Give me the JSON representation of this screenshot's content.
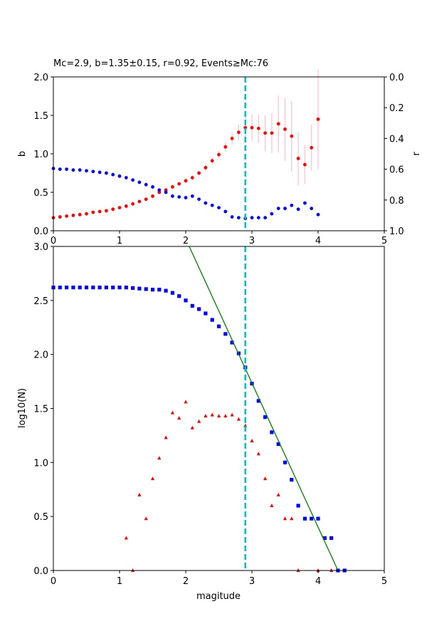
{
  "chart_data": [
    {
      "type": "scatter",
      "title": "Mc=2.9, b=1.35±0.15, r=0.92, Events≥Mc:76",
      "xlabel": "",
      "ylabel": "b",
      "ylabel_right": "r",
      "xlim": [
        0,
        5
      ],
      "ylim": [
        0,
        2
      ],
      "ylim_right": [
        1,
        0
      ],
      "xticks": [
        "0",
        "1",
        "2",
        "3",
        "4",
        "5"
      ],
      "yticks": [
        "0.0",
        "0.5",
        "1.0",
        "1.5",
        "2.0"
      ],
      "yticks_right": [
        "0.0",
        "0.2",
        "0.4",
        "0.6",
        "0.8",
        "1.0"
      ],
      "mc_line": 2.9,
      "colors": {
        "b": "#ff0000",
        "r": "#0000ff",
        "error": "#ffc0cb",
        "mc": "#00bfbf"
      },
      "series": [
        {
          "key": "b",
          "axis": "left",
          "x": [
            0.0,
            0.1,
            0.2,
            0.3,
            0.4,
            0.5,
            0.6,
            0.7,
            0.8,
            0.9,
            1.0,
            1.1,
            1.2,
            1.3,
            1.4,
            1.5,
            1.6,
            1.7,
            1.8,
            1.9,
            2.0,
            2.1,
            2.2,
            2.3,
            2.4,
            2.5,
            2.6,
            2.7,
            2.8,
            2.9,
            3.0,
            3.1,
            3.2,
            3.3,
            3.4,
            3.5,
            3.6,
            3.7,
            3.8,
            3.9,
            4.0
          ],
          "y": [
            0.17,
            0.18,
            0.19,
            0.2,
            0.21,
            0.22,
            0.24,
            0.25,
            0.26,
            0.28,
            0.3,
            0.32,
            0.35,
            0.38,
            0.41,
            0.45,
            0.5,
            0.53,
            0.57,
            0.61,
            0.65,
            0.69,
            0.75,
            0.82,
            0.91,
            0.99,
            1.09,
            1.2,
            1.28,
            1.34,
            1.34,
            1.33,
            1.27,
            1.27,
            1.39,
            1.32,
            1.23,
            0.94,
            0.86,
            1.08,
            1.45
          ],
          "err": [
            0.01,
            0.01,
            0.01,
            0.01,
            0.01,
            0.01,
            0.01,
            0.01,
            0.01,
            0.01,
            0.01,
            0.01,
            0.01,
            0.01,
            0.02,
            0.02,
            0.02,
            0.02,
            0.02,
            0.02,
            0.03,
            0.03,
            0.03,
            0.04,
            0.05,
            0.05,
            0.06,
            0.08,
            0.1,
            0.15,
            0.17,
            0.18,
            0.23,
            0.26,
            0.37,
            0.41,
            0.46,
            0.35,
            0.25,
            0.3,
            0.65
          ]
        },
        {
          "key": "r",
          "axis": "right",
          "x": [
            0.0,
            0.1,
            0.2,
            0.3,
            0.4,
            0.5,
            0.6,
            0.7,
            0.8,
            0.9,
            1.0,
            1.1,
            1.2,
            1.3,
            1.4,
            1.5,
            1.6,
            1.7,
            1.8,
            1.9,
            2.0,
            2.1,
            2.2,
            2.3,
            2.4,
            2.5,
            2.6,
            2.7,
            2.8,
            2.9,
            3.0,
            3.1,
            3.2,
            3.3,
            3.4,
            3.5,
            3.6,
            3.7,
            3.8,
            3.9,
            4.0
          ],
          "y": [
            0.595,
            0.6,
            0.6,
            0.605,
            0.605,
            0.61,
            0.615,
            0.62,
            0.625,
            0.635,
            0.645,
            0.655,
            0.67,
            0.685,
            0.7,
            0.715,
            0.735,
            0.75,
            0.775,
            0.78,
            0.785,
            0.775,
            0.795,
            0.82,
            0.835,
            0.85,
            0.875,
            0.91,
            0.915,
            0.92,
            0.915,
            0.915,
            0.915,
            0.89,
            0.855,
            0.855,
            0.835,
            0.86,
            0.82,
            0.855,
            0.895
          ]
        }
      ]
    },
    {
      "type": "scatter",
      "title": "",
      "xlabel": "magitude",
      "ylabel": "log10(N)",
      "xlim": [
        0,
        5
      ],
      "ylim": [
        0,
        3
      ],
      "xticks": [
        "0",
        "1",
        "2",
        "3",
        "4",
        "5"
      ],
      "yticks": [
        "0.0",
        "0.5",
        "1.0",
        "1.5",
        "2.0",
        "2.5",
        "3.0"
      ],
      "mc_line": 2.9,
      "colors": {
        "cumulative": "#0000ff",
        "noncumulative": "#ff0000",
        "fit": "#008000",
        "mc": "#00bfbf"
      },
      "fit_line": {
        "x": [
          2.0,
          4.3
        ],
        "y": [
          3.07,
          0.0
        ]
      },
      "series": [
        {
          "key": "cumulative",
          "marker": "square",
          "x": [
            0.0,
            0.1,
            0.2,
            0.3,
            0.4,
            0.5,
            0.6,
            0.7,
            0.8,
            0.9,
            1.0,
            1.1,
            1.2,
            1.3,
            1.4,
            1.5,
            1.6,
            1.7,
            1.8,
            1.9,
            2.0,
            2.1,
            2.2,
            2.3,
            2.4,
            2.5,
            2.6,
            2.7,
            2.8,
            2.9,
            3.0,
            3.1,
            3.2,
            3.3,
            3.4,
            3.5,
            3.6,
            3.7,
            3.8,
            3.9,
            4.0,
            4.1,
            4.2,
            4.3,
            4.4
          ],
          "y": [
            2.62,
            2.62,
            2.62,
            2.62,
            2.62,
            2.62,
            2.62,
            2.62,
            2.62,
            2.62,
            2.62,
            2.62,
            2.615,
            2.61,
            2.605,
            2.6,
            2.6,
            2.59,
            2.57,
            2.54,
            2.5,
            2.45,
            2.42,
            2.38,
            2.32,
            2.26,
            2.19,
            2.11,
            2.01,
            1.88,
            1.73,
            1.57,
            1.42,
            1.28,
            1.17,
            1.0,
            0.84,
            0.6,
            0.48,
            0.48,
            0.48,
            0.3,
            0.3,
            0.0,
            0.0
          ]
        },
        {
          "key": "noncumulative",
          "marker": "triangle",
          "x": [
            1.1,
            1.2,
            1.3,
            1.4,
            1.5,
            1.6,
            1.7,
            1.8,
            1.9,
            2.0,
            2.1,
            2.2,
            2.3,
            2.4,
            2.5,
            2.6,
            2.7,
            2.8,
            2.9,
            3.0,
            3.1,
            3.2,
            3.3,
            3.4,
            3.5,
            3.6,
            3.7,
            4.0,
            4.2
          ],
          "y": [
            0.3,
            0.0,
            0.7,
            0.48,
            0.85,
            1.04,
            1.23,
            1.46,
            1.41,
            1.56,
            1.32,
            1.38,
            1.43,
            1.44,
            1.43,
            1.43,
            1.44,
            1.4,
            1.34,
            1.2,
            1.08,
            0.85,
            0.6,
            0.7,
            0.48,
            0.48,
            0.0,
            0.0,
            0.0
          ]
        }
      ]
    }
  ]
}
